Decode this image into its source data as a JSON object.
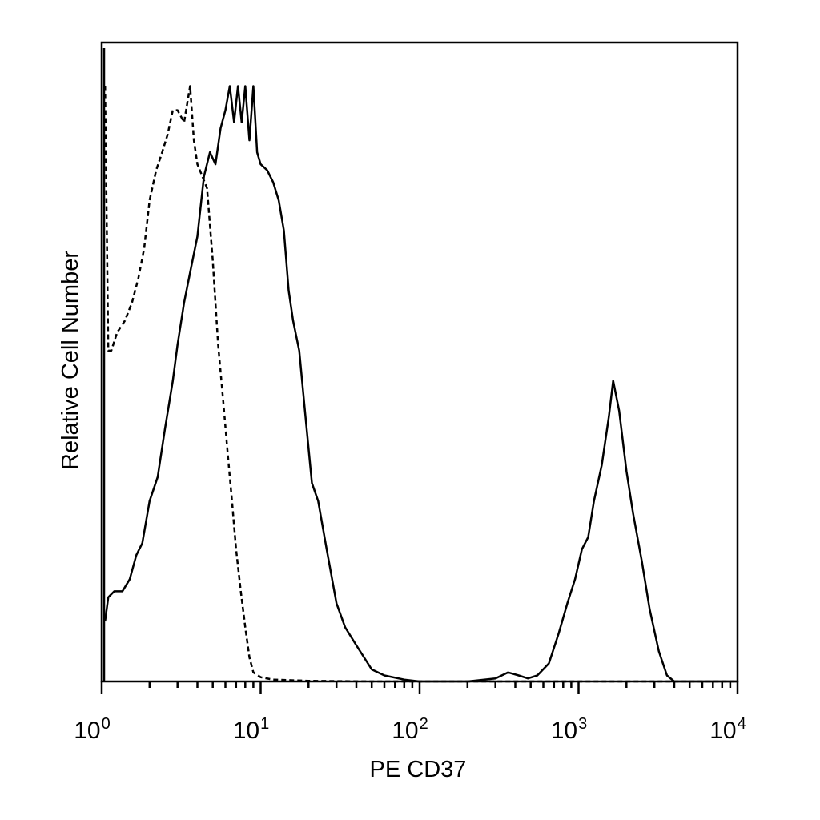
{
  "chart_data": {
    "type": "line",
    "title": "",
    "xlabel": "PE CD37",
    "ylabel": "Relative Cell Number",
    "x_scale": "log",
    "xlim": [
      1,
      10000
    ],
    "ylim": [
      0,
      100
    ],
    "x_ticks": [
      {
        "value": 1,
        "base": "10",
        "exp": "0"
      },
      {
        "value": 10,
        "base": "10",
        "exp": "1"
      },
      {
        "value": 100,
        "base": "10",
        "exp": "2"
      },
      {
        "value": 1000,
        "base": "10",
        "exp": "3"
      },
      {
        "value": 10000,
        "base": "10",
        "exp": "4"
      }
    ],
    "grid": false,
    "legend": "none",
    "series": [
      {
        "style": "dashed",
        "color": "#000000",
        "x": [
          1.05,
          1.1,
          1.15,
          1.25,
          1.4,
          1.55,
          1.7,
          1.85,
          2.0,
          2.2,
          2.4,
          2.6,
          2.8,
          3.0,
          3.3,
          3.6,
          3.8,
          4.0,
          4.3,
          4.6,
          5.0,
          5.4,
          5.8,
          6.2,
          6.6,
          7.0,
          7.5,
          8.0,
          8.5,
          9.0,
          10,
          12,
          20,
          50,
          100,
          300,
          1000,
          10000
        ],
        "y": [
          99,
          55,
          55,
          58,
          60,
          63,
          67,
          72,
          80,
          85,
          88,
          91,
          95,
          95,
          93,
          99,
          90,
          86,
          84,
          82,
          70,
          56,
          47,
          38,
          30,
          22,
          15,
          9,
          4,
          1.5,
          0.7,
          0.3,
          0.1,
          0,
          0,
          0,
          0,
          0
        ]
      },
      {
        "style": "solid",
        "color": "#000000",
        "x": [
          1.05,
          1.1,
          1.2,
          1.35,
          1.5,
          1.65,
          1.8,
          2.0,
          2.25,
          2.5,
          2.8,
          3.0,
          3.3,
          3.6,
          4.0,
          4.4,
          4.8,
          5.2,
          5.6,
          6.0,
          6.4,
          6.8,
          7.2,
          7.6,
          8.0,
          8.5,
          9.0,
          9.5,
          10,
          11,
          12,
          13,
          14,
          15,
          16,
          17.5,
          19,
          21,
          23,
          26,
          30,
          34,
          40,
          50,
          60,
          80,
          100,
          150,
          200,
          300,
          360,
          420,
          480,
          550,
          650,
          750,
          850,
          950,
          1050,
          1150,
          1250,
          1400,
          1550,
          1650,
          1800,
          2000,
          2200,
          2500,
          2800,
          3200,
          3600,
          4000,
          5000,
          10000
        ],
        "y": [
          10,
          14,
          15,
          15,
          17,
          21,
          23,
          30,
          34,
          42,
          50,
          56,
          63,
          68,
          74,
          84,
          88,
          86,
          92,
          95,
          99,
          93,
          99,
          93,
          99,
          90,
          99,
          88,
          86,
          85,
          83,
          80,
          75,
          65,
          60,
          55,
          45,
          33,
          30,
          22,
          13,
          9,
          6,
          2,
          1,
          0.3,
          0,
          0,
          0,
          0.5,
          1.5,
          1,
          0.5,
          1,
          3,
          8,
          13,
          17,
          22,
          24,
          30,
          36,
          44,
          50,
          45,
          35,
          28,
          20,
          12,
          5,
          1,
          0,
          0,
          0
        ]
      }
    ]
  }
}
